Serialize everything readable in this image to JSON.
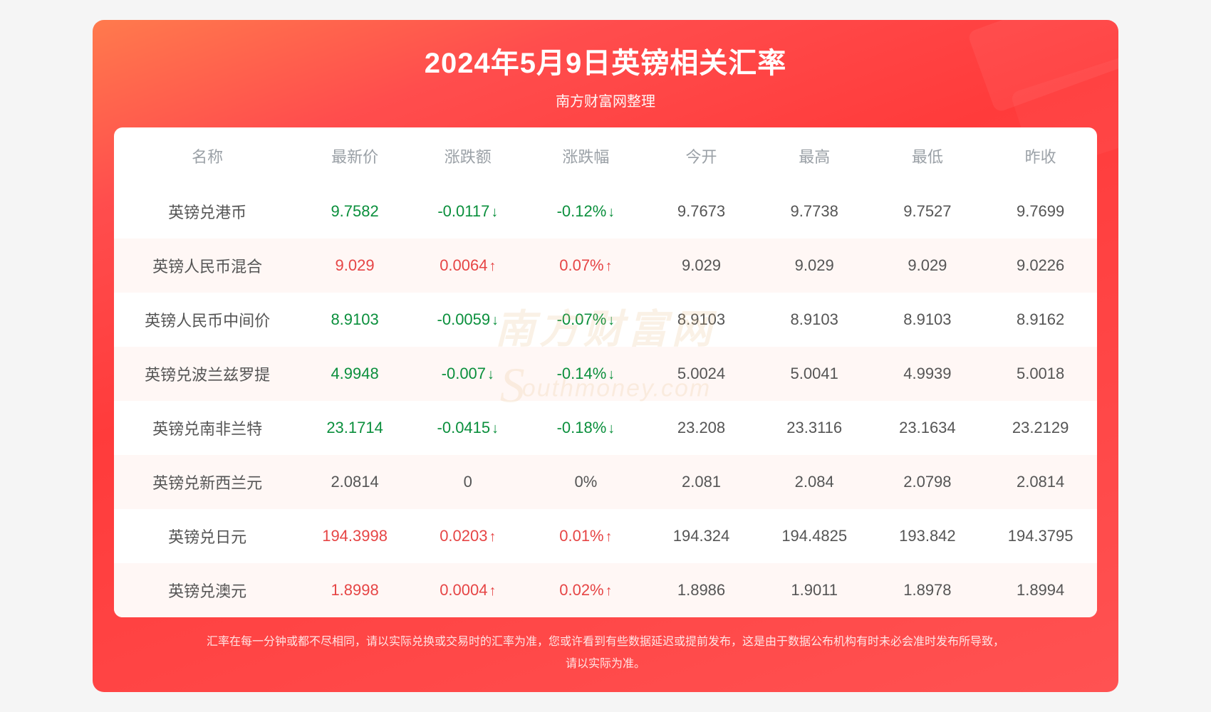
{
  "header": {
    "title": "2024年5月9日英镑相关汇率",
    "subtitle": "南方财富网整理"
  },
  "colors": {
    "header_text": "#9aa0a6",
    "name_text": "#555555",
    "neutral_text": "#555555",
    "up": "#e64545",
    "down": "#0a8f3c",
    "row_even_bg": "#fff7f5",
    "row_odd_bg": "#ffffff",
    "card_gradient_from": "#ff7a4d",
    "card_gradient_to": "#ff3b3b"
  },
  "table": {
    "columns": [
      {
        "key": "name",
        "label": "名称"
      },
      {
        "key": "price",
        "label": "最新价"
      },
      {
        "key": "change",
        "label": "涨跌额"
      },
      {
        "key": "pct",
        "label": "涨跌幅"
      },
      {
        "key": "open",
        "label": "今开"
      },
      {
        "key": "high",
        "label": "最高"
      },
      {
        "key": "low",
        "label": "最低"
      },
      {
        "key": "prev",
        "label": "昨收"
      }
    ],
    "rows": [
      {
        "name": "英镑兑港币",
        "price": "9.7582",
        "change": "-0.0117",
        "pct": "-0.12%",
        "dir": "down",
        "open": "9.7673",
        "high": "9.7738",
        "low": "9.7527",
        "prev": "9.7699"
      },
      {
        "name": "英镑人民币混合",
        "price": "9.029",
        "change": "0.0064",
        "pct": "0.07%",
        "dir": "up",
        "open": "9.029",
        "high": "9.029",
        "low": "9.029",
        "prev": "9.0226"
      },
      {
        "name": "英镑人民币中间价",
        "price": "8.9103",
        "change": "-0.0059",
        "pct": "-0.07%",
        "dir": "down",
        "open": "8.9103",
        "high": "8.9103",
        "low": "8.9103",
        "prev": "8.9162"
      },
      {
        "name": "英镑兑波兰兹罗提",
        "price": "4.9948",
        "change": "-0.007",
        "pct": "-0.14%",
        "dir": "down",
        "open": "5.0024",
        "high": "5.0041",
        "low": "4.9939",
        "prev": "5.0018"
      },
      {
        "name": "英镑兑南非兰特",
        "price": "23.1714",
        "change": "-0.0415",
        "pct": "-0.18%",
        "dir": "down",
        "open": "23.208",
        "high": "23.3116",
        "low": "23.1634",
        "prev": "23.2129"
      },
      {
        "name": "英镑兑新西兰元",
        "price": "2.0814",
        "change": "0",
        "pct": "0%",
        "dir": "flat",
        "open": "2.081",
        "high": "2.084",
        "low": "2.0798",
        "prev": "2.0814"
      },
      {
        "name": "英镑兑日元",
        "price": "194.3998",
        "change": "0.0203",
        "pct": "0.01%",
        "dir": "up",
        "open": "194.324",
        "high": "194.4825",
        "low": "193.842",
        "prev": "194.3795"
      },
      {
        "name": "英镑兑澳元",
        "price": "1.8998",
        "change": "0.0004",
        "pct": "0.02%",
        "dir": "up",
        "open": "1.8986",
        "high": "1.9011",
        "low": "1.8978",
        "prev": "1.8994"
      }
    ]
  },
  "arrows": {
    "up": "↑",
    "down": "↓",
    "flat": ""
  },
  "watermark": {
    "cn": "南方财富网",
    "en": "outhmoney.com",
    "j_glyph": "S"
  },
  "disclaimer": {
    "line1": "汇率在每一分钟或都不尽相同，请以实际兑换或交易时的汇率为准，您或许看到有些数据延迟或提前发布，这是由于数据公布机构有时未必会准时发布所导致，",
    "line2": "请以实际为准。"
  }
}
